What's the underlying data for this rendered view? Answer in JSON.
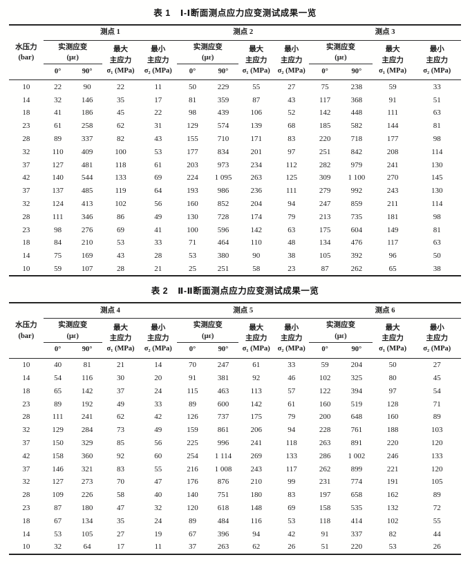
{
  "page": {
    "background": "#ffffff",
    "ink_color": "#1c1c1c",
    "rule_color": "#262626"
  },
  "columns": {
    "pressure": [
      "水压力",
      "(bar)"
    ],
    "strain": [
      "实测应变",
      "(με)"
    ],
    "max_stress": [
      "最大",
      "主应力",
      "σ₁ (MPa)"
    ],
    "min_stress": [
      "最小",
      "主应力",
      "σ₂ (MPa)"
    ],
    "angles": [
      "0°",
      "90°"
    ]
  },
  "tables": [
    {
      "title_label": "表 1",
      "title_text": "Ⅰ-Ⅰ断面测点应力应变测试成果一览",
      "points": [
        "测点 1",
        "测点 2",
        "测点 3"
      ],
      "rows": [
        [
          "10",
          "22",
          "90",
          "22",
          "11",
          "50",
          "229",
          "55",
          "27",
          "75",
          "238",
          "59",
          "33"
        ],
        [
          "14",
          "32",
          "146",
          "35",
          "17",
          "81",
          "359",
          "87",
          "43",
          "117",
          "368",
          "91",
          "51"
        ],
        [
          "18",
          "41",
          "186",
          "45",
          "22",
          "98",
          "439",
          "106",
          "52",
          "142",
          "448",
          "111",
          "63"
        ],
        [
          "23",
          "61",
          "258",
          "62",
          "31",
          "129",
          "574",
          "139",
          "68",
          "185",
          "582",
          "144",
          "81"
        ],
        [
          "28",
          "89",
          "337",
          "82",
          "43",
          "155",
          "710",
          "171",
          "83",
          "220",
          "718",
          "177",
          "98"
        ],
        [
          "32",
          "110",
          "409",
          "100",
          "53",
          "177",
          "834",
          "201",
          "97",
          "251",
          "842",
          "208",
          "114"
        ],
        [
          "37",
          "127",
          "481",
          "118",
          "61",
          "203",
          "973",
          "234",
          "112",
          "282",
          "979",
          "241",
          "130"
        ],
        [
          "42",
          "140",
          "544",
          "133",
          "69",
          "224",
          "1 095",
          "263",
          "125",
          "309",
          "1 100",
          "270",
          "145"
        ],
        [
          "37",
          "137",
          "485",
          "119",
          "64",
          "193",
          "986",
          "236",
          "111",
          "279",
          "992",
          "243",
          "130"
        ],
        [
          "32",
          "124",
          "413",
          "102",
          "56",
          "160",
          "852",
          "204",
          "94",
          "247",
          "859",
          "211",
          "114"
        ],
        [
          "28",
          "111",
          "346",
          "86",
          "49",
          "130",
          "728",
          "174",
          "79",
          "213",
          "735",
          "181",
          "98"
        ],
        [
          "23",
          "98",
          "276",
          "69",
          "41",
          "100",
          "596",
          "142",
          "63",
          "175",
          "604",
          "149",
          "81"
        ],
        [
          "18",
          "84",
          "210",
          "53",
          "33",
          "71",
          "464",
          "110",
          "48",
          "134",
          "476",
          "117",
          "63"
        ],
        [
          "14",
          "75",
          "169",
          "43",
          "28",
          "53",
          "380",
          "90",
          "38",
          "105",
          "392",
          "96",
          "50"
        ],
        [
          "10",
          "59",
          "107",
          "28",
          "21",
          "25",
          "251",
          "58",
          "23",
          "87",
          "262",
          "65",
          "38"
        ]
      ]
    },
    {
      "title_label": "表 2",
      "title_text": "Ⅱ-Ⅱ断面测点应力应变测试成果一览",
      "points": [
        "测点 4",
        "测点 5",
        "测点 6"
      ],
      "rows": [
        [
          "10",
          "40",
          "81",
          "21",
          "14",
          "70",
          "247",
          "61",
          "33",
          "59",
          "204",
          "50",
          "27"
        ],
        [
          "14",
          "54",
          "116",
          "30",
          "20",
          "91",
          "381",
          "92",
          "46",
          "102",
          "325",
          "80",
          "45"
        ],
        [
          "18",
          "65",
          "142",
          "37",
          "24",
          "115",
          "463",
          "113",
          "57",
          "122",
          "394",
          "97",
          "54"
        ],
        [
          "23",
          "89",
          "192",
          "49",
          "33",
          "89",
          "600",
          "142",
          "61",
          "160",
          "519",
          "128",
          "71"
        ],
        [
          "28",
          "111",
          "241",
          "62",
          "42",
          "126",
          "737",
          "175",
          "79",
          "200",
          "648",
          "160",
          "89"
        ],
        [
          "32",
          "129",
          "284",
          "73",
          "49",
          "159",
          "861",
          "206",
          "94",
          "228",
          "761",
          "188",
          "103"
        ],
        [
          "37",
          "150",
          "329",
          "85",
          "56",
          "225",
          "996",
          "241",
          "118",
          "263",
          "891",
          "220",
          "120"
        ],
        [
          "42",
          "158",
          "360",
          "92",
          "60",
          "254",
          "1 114",
          "269",
          "133",
          "286",
          "1 002",
          "246",
          "133"
        ],
        [
          "37",
          "146",
          "321",
          "83",
          "55",
          "216",
          "1 008",
          "243",
          "117",
          "262",
          "899",
          "221",
          "120"
        ],
        [
          "32",
          "127",
          "273",
          "70",
          "47",
          "176",
          "876",
          "210",
          "99",
          "231",
          "774",
          "191",
          "105"
        ],
        [
          "28",
          "109",
          "226",
          "58",
          "40",
          "140",
          "751",
          "180",
          "83",
          "197",
          "658",
          "162",
          "89"
        ],
        [
          "23",
          "87",
          "180",
          "47",
          "32",
          "120",
          "618",
          "148",
          "69",
          "158",
          "535",
          "132",
          "72"
        ],
        [
          "18",
          "67",
          "134",
          "35",
          "24",
          "89",
          "484",
          "116",
          "53",
          "118",
          "414",
          "102",
          "55"
        ],
        [
          "14",
          "53",
          "105",
          "27",
          "19",
          "67",
          "396",
          "94",
          "42",
          "91",
          "337",
          "82",
          "44"
        ],
        [
          "10",
          "32",
          "64",
          "17",
          "11",
          "37",
          "263",
          "62",
          "26",
          "51",
          "220",
          "53",
          "26"
        ]
      ]
    }
  ]
}
